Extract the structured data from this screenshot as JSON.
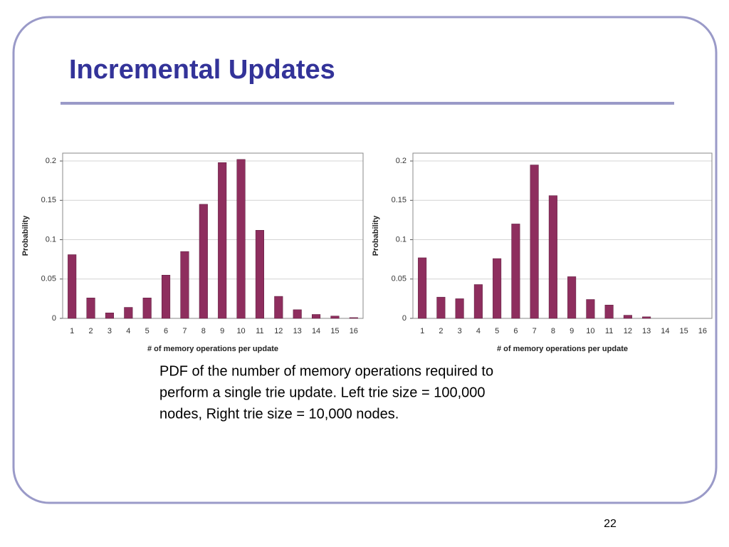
{
  "title": "Incremental Updates",
  "caption": [
    "PDF of the number of memory operations required to",
    "perform a single trie update. Left trie size = 100,000",
    "nodes, Right trie size = 10,000 nodes."
  ],
  "page_number": "22",
  "chart_data": [
    {
      "type": "bar",
      "x_label": "# of memory operations per update",
      "y_label": "Probability",
      "categories": [
        "1",
        "2",
        "3",
        "4",
        "5",
        "6",
        "7",
        "8",
        "9",
        "10",
        "11",
        "12",
        "13",
        "14",
        "15",
        "16"
      ],
      "values": [
        0.081,
        0.026,
        0.007,
        0.014,
        0.026,
        0.055,
        0.085,
        0.145,
        0.198,
        0.202,
        0.112,
        0.028,
        0.011,
        0.005,
        0.003,
        0.001
      ],
      "color": "#8e2e5e",
      "ylim": [
        0,
        0.21
      ],
      "yticks": [
        0,
        0.05,
        0.1,
        0.15,
        0.2
      ],
      "grid": true
    },
    {
      "type": "bar",
      "x_label": "# of memory operations per update",
      "y_label": "Probability",
      "categories": [
        "1",
        "2",
        "3",
        "4",
        "5",
        "6",
        "7",
        "8",
        "9",
        "10",
        "11",
        "12",
        "13",
        "14",
        "15",
        "16"
      ],
      "values": [
        0.077,
        0.027,
        0.025,
        0.043,
        0.076,
        0.12,
        0.195,
        0.156,
        0.053,
        0.024,
        0.017,
        0.004,
        0.002,
        0,
        0,
        0
      ],
      "color": "#8e2e5e",
      "ylim": [
        0,
        0.21
      ],
      "yticks": [
        0,
        0.05,
        0.1,
        0.15,
        0.2
      ],
      "grid": true
    }
  ]
}
